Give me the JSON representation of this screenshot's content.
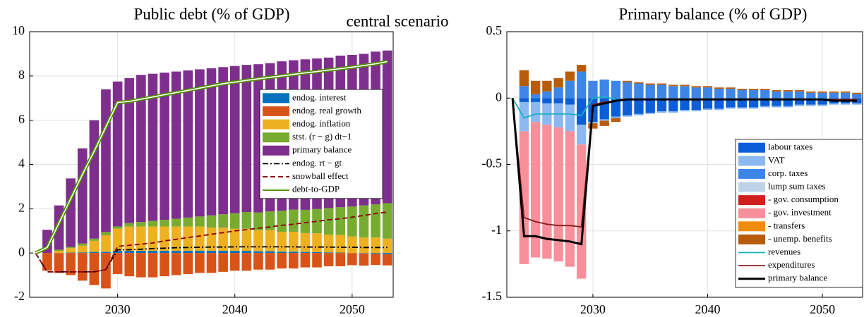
{
  "title": "central scenario",
  "chart_data": [
    {
      "type": "bar",
      "stacked": true,
      "title": "Public debt (% of GDP)",
      "x": [
        2024,
        2025,
        2026,
        2027,
        2028,
        2029,
        2030,
        2031,
        2032,
        2033,
        2034,
        2035,
        2036,
        2037,
        2038,
        2039,
        2040,
        2041,
        2042,
        2043,
        2044,
        2045,
        2046,
        2047,
        2048,
        2049,
        2050,
        2051,
        2052,
        2053
      ],
      "xlim": [
        2022.5,
        2053.5
      ],
      "xticks": [
        2030,
        2040,
        2050
      ],
      "ylim": [
        -2,
        10
      ],
      "yticks": [
        -2,
        0,
        2,
        4,
        6,
        8,
        10
      ],
      "grid": true,
      "legend": "upper right",
      "series": [
        {
          "name": "endog. interest",
          "type": "bar",
          "color": "#0072bd",
          "values": [
            0,
            0,
            0.02,
            0.03,
            0.05,
            0.05,
            0.1,
            0.1,
            0.1,
            0.1,
            0.1,
            0.1,
            0.1,
            0.1,
            0.1,
            0.1,
            0.1,
            0.1,
            0.08,
            0.08,
            0.06,
            0.06,
            0.05,
            0.04,
            0.03,
            0.02,
            0,
            -0.02,
            -0.04,
            -0.06
          ]
        },
        {
          "name": "endog. real growth",
          "type": "bar",
          "color": "#d95319",
          "values": [
            -0.8,
            -0.9,
            -1.0,
            -1.25,
            -1.45,
            -1.6,
            -0.95,
            -1.05,
            -1.1,
            -1.1,
            -1.05,
            -1.0,
            -0.95,
            -0.9,
            -0.9,
            -0.85,
            -0.8,
            -0.8,
            -0.75,
            -0.75,
            -0.7,
            -0.7,
            -0.65,
            -0.65,
            -0.6,
            -0.6,
            -0.55,
            -0.55,
            -0.5,
            -0.5
          ]
        },
        {
          "name": "endog. inflation",
          "type": "bar",
          "color": "#edb120",
          "values": [
            0,
            0.1,
            0.2,
            0.3,
            0.5,
            0.75,
            1.0,
            1.1,
            1.1,
            1.1,
            1.1,
            1.1,
            1.1,
            1.1,
            1.05,
            1.05,
            1.0,
            1.0,
            0.95,
            0.95,
            0.9,
            0.9,
            0.85,
            0.85,
            0.8,
            0.8,
            0.75,
            0.7,
            0.7,
            0.65
          ]
        },
        {
          "name": "stst. (r − g) dt−1",
          "type": "bar",
          "color": "#77ac30",
          "values": [
            0,
            0.05,
            0.05,
            0.1,
            0.1,
            0.15,
            0.1,
            0.15,
            0.2,
            0.25,
            0.3,
            0.35,
            0.4,
            0.45,
            0.55,
            0.6,
            0.7,
            0.75,
            0.8,
            0.85,
            0.95,
            1.0,
            1.05,
            1.1,
            1.2,
            1.25,
            1.35,
            1.45,
            1.5,
            1.6
          ]
        },
        {
          "name": "primary balance",
          "type": "bar",
          "color": "#7e2f8e",
          "values": [
            1.05,
            2.0,
            3.1,
            4.3,
            5.35,
            6.45,
            6.55,
            6.55,
            6.65,
            6.65,
            6.65,
            6.65,
            6.65,
            6.65,
            6.65,
            6.65,
            6.65,
            6.65,
            6.7,
            6.7,
            6.75,
            6.75,
            6.8,
            6.8,
            6.8,
            6.85,
            6.85,
            6.85,
            6.9,
            6.9
          ]
        },
        {
          "name": "endog. rt − gt",
          "type": "line",
          "color": "#000000",
          "style": "dashdot",
          "x": [
            2023,
            2024,
            2025,
            2026,
            2027,
            2028,
            2029,
            2030,
            2031,
            2032,
            2033,
            2034,
            2035,
            2036,
            2037,
            2038,
            2039,
            2040,
            2041,
            2042,
            2043,
            2044,
            2045,
            2046,
            2047,
            2048,
            2049,
            2050,
            2051,
            2052,
            2053
          ],
          "values": [
            0,
            -0.85,
            -0.85,
            -0.85,
            -0.85,
            -0.85,
            -0.75,
            0.15,
            0.15,
            0.17,
            0.2,
            0.22,
            0.24,
            0.25,
            0.26,
            0.27,
            0.27,
            0.28,
            0.28,
            0.28,
            0.28,
            0.28,
            0.28,
            0.27,
            0.27,
            0.27,
            0.26,
            0.26,
            0.25,
            0.25,
            0.25
          ]
        },
        {
          "name": "snowball effect",
          "type": "line",
          "color": "#8b0000",
          "style": "dashed",
          "x": [
            2023,
            2024,
            2025,
            2026,
            2027,
            2028,
            2029,
            2030,
            2031,
            2032,
            2033,
            2034,
            2035,
            2036,
            2037,
            2038,
            2039,
            2040,
            2041,
            2042,
            2043,
            2044,
            2045,
            2046,
            2047,
            2048,
            2049,
            2050,
            2051,
            2052,
            2053
          ],
          "values": [
            0,
            -0.85,
            -0.85,
            -0.85,
            -0.85,
            -0.85,
            -0.75,
            0.3,
            0.35,
            0.4,
            0.45,
            0.55,
            0.62,
            0.7,
            0.77,
            0.85,
            0.92,
            1.0,
            1.06,
            1.12,
            1.18,
            1.25,
            1.3,
            1.37,
            1.43,
            1.5,
            1.55,
            1.62,
            1.7,
            1.78,
            1.85
          ]
        },
        {
          "name": "debt-to-GDP",
          "type": "line",
          "color": "#4f8f00",
          "style": "double",
          "x": [
            2023,
            2024,
            2025,
            2026,
            2027,
            2028,
            2029,
            2030,
            2031,
            2032,
            2033,
            2034,
            2035,
            2036,
            2037,
            2038,
            2039,
            2040,
            2041,
            2042,
            2043,
            2044,
            2045,
            2046,
            2047,
            2048,
            2049,
            2050,
            2051,
            2052,
            2053
          ],
          "values": [
            0,
            0.25,
            1.35,
            2.45,
            3.55,
            4.6,
            5.7,
            6.8,
            6.85,
            6.95,
            7.05,
            7.15,
            7.25,
            7.35,
            7.45,
            7.55,
            7.65,
            7.72,
            7.8,
            7.87,
            7.94,
            8.0,
            8.07,
            8.14,
            8.2,
            8.27,
            8.33,
            8.4,
            8.47,
            8.55,
            8.65
          ]
        }
      ]
    },
    {
      "type": "bar",
      "stacked": true,
      "title": "Primary balance (% of GDP)",
      "x": [
        2024,
        2025,
        2026,
        2027,
        2028,
        2029,
        2030,
        2031,
        2032,
        2033,
        2034,
        2035,
        2036,
        2037,
        2038,
        2039,
        2040,
        2041,
        2042,
        2043,
        2044,
        2045,
        2046,
        2047,
        2048,
        2049,
        2050,
        2051,
        2052,
        2053
      ],
      "xlim": [
        2022.5,
        2053.5
      ],
      "xticks": [
        2030,
        2040,
        2050
      ],
      "ylim": [
        -1.5,
        0.5
      ],
      "yticks": [
        -1.5,
        -1,
        -0.5,
        0,
        0.5
      ],
      "grid": true,
      "legend": "lower right",
      "series": [
        {
          "name": "labour taxes",
          "type": "bar",
          "color": "#0b5ed7",
          "values": [
            -0.03,
            -0.03,
            -0.04,
            -0.04,
            -0.05,
            -0.2,
            -0.18,
            -0.16,
            -0.14,
            -0.13,
            -0.12,
            -0.11,
            -0.1,
            -0.1,
            -0.09,
            -0.09,
            -0.08,
            -0.08,
            -0.07,
            -0.07,
            -0.07,
            -0.06,
            -0.06,
            -0.06,
            -0.05,
            -0.05,
            -0.05,
            -0.04,
            -0.04,
            -0.04
          ]
        },
        {
          "name": "VAT",
          "type": "bar",
          "color": "#8cb8f2",
          "values": [
            -0.22,
            -0.15,
            -0.16,
            -0.18,
            -0.2,
            -0.15,
            -0.01,
            -0.01,
            -0.01,
            -0.01,
            -0.01,
            -0.01,
            -0.01,
            -0.01,
            -0.01,
            -0.01,
            -0.01,
            -0.01,
            -0.01,
            -0.01,
            -0.01,
            -0.01,
            -0.01,
            -0.01,
            -0.01,
            -0.01,
            -0.01,
            -0.01,
            -0.01,
            -0.01
          ]
        },
        {
          "name": "corp. taxes",
          "type": "bar",
          "color": "#3d86e8",
          "values": [
            0.09,
            0.03,
            0.05,
            0.08,
            0.13,
            0.2,
            0.13,
            0.14,
            0.13,
            0.12,
            0.11,
            0.1,
            0.1,
            0.09,
            0.09,
            0.08,
            0.08,
            0.07,
            0.07,
            0.06,
            0.06,
            0.06,
            0.05,
            0.05,
            0.05,
            0.04,
            0.04,
            0.04,
            0.04,
            0.03
          ]
        },
        {
          "name": "lump sum taxes",
          "type": "bar",
          "color": "#bfd3e6",
          "values": [
            0,
            0,
            0,
            0,
            0,
            0,
            0,
            0,
            0,
            0,
            0,
            0,
            0,
            0,
            0,
            0,
            0,
            0,
            0,
            0,
            0,
            0,
            0,
            0,
            0,
            0,
            0,
            0,
            0,
            0
          ]
        },
        {
          "name": "- gov. consumption",
          "type": "bar",
          "color": "#d0201c",
          "values": [
            0,
            0,
            0,
            0,
            0,
            0,
            0,
            0,
            0,
            0,
            0,
            0,
            0,
            0,
            0,
            0,
            0,
            0,
            0,
            0,
            0,
            0,
            0,
            0,
            0,
            0,
            0,
            0,
            0,
            0
          ]
        },
        {
          "name": "- gov. investment",
          "type": "bar",
          "color": "#f7909a",
          "values": [
            -1.0,
            -1.02,
            -1.01,
            -1.01,
            -1.02,
            -1.01,
            0,
            0,
            0,
            0,
            0,
            0,
            0,
            0,
            0,
            0,
            0,
            0,
            0,
            0,
            0,
            0,
            0,
            0,
            0,
            0,
            0,
            0,
            0,
            0
          ]
        },
        {
          "name": "- transfers",
          "type": "bar",
          "color": "#f08c0c",
          "values": [
            0,
            0,
            0,
            0,
            0,
            0,
            0,
            0,
            0,
            0,
            0,
            0,
            0,
            0,
            0,
            0,
            0,
            0,
            0,
            0,
            0,
            0,
            0,
            0,
            0,
            0,
            0,
            0,
            0,
            0
          ]
        },
        {
          "name": "- unemp. benefits",
          "type": "bar",
          "color": "#b85c0c",
          "values": [
            0.12,
            0.1,
            0.08,
            0.07,
            0.07,
            0.05,
            -0.04,
            -0.04,
            -0.03,
            0.01,
            0.01,
            0.01,
            0.01,
            0.01,
            0.01,
            0.01,
            0.01,
            0.01,
            0.01,
            0.01,
            0.01,
            0.01,
            0.01,
            0.01,
            0.01,
            0.01,
            0.01,
            0.01,
            0.01,
            0.01
          ]
        },
        {
          "name": "revenues",
          "type": "line",
          "color": "#17b0bf",
          "style": "solid",
          "x": [
            2023,
            2024,
            2025,
            2026,
            2027,
            2028,
            2029,
            2030,
            2031,
            2032,
            2033,
            2034,
            2035,
            2036,
            2037,
            2038,
            2039,
            2040,
            2041,
            2042,
            2043,
            2044,
            2045,
            2046,
            2047,
            2048,
            2049,
            2050,
            2051,
            2052,
            2053
          ],
          "values": [
            0,
            -0.15,
            -0.12,
            -0.12,
            -0.12,
            -0.12,
            -0.13,
            0.0,
            0.01,
            -0.01,
            -0.01,
            -0.01,
            -0.01,
            -0.01,
            -0.01,
            -0.01,
            -0.01,
            -0.01,
            -0.01,
            -0.01,
            -0.01,
            -0.01,
            -0.01,
            -0.01,
            -0.01,
            -0.01,
            -0.01,
            -0.01,
            -0.01,
            -0.01,
            -0.01
          ]
        },
        {
          "name": "expenditures",
          "type": "line",
          "color": "#8b1a1a",
          "style": "solid",
          "x": [
            2023,
            2024,
            2025,
            2026,
            2027,
            2028,
            2029,
            2030,
            2031,
            2032,
            2033,
            2034,
            2035,
            2036,
            2037,
            2038,
            2039,
            2040,
            2041,
            2042,
            2043,
            2044,
            2045,
            2046,
            2047,
            2048,
            2049,
            2050,
            2051,
            2052,
            2053
          ],
          "values": [
            0,
            -0.9,
            -0.93,
            -0.95,
            -0.96,
            -0.96,
            -0.97,
            -0.05,
            -0.03,
            -0.02,
            -0.01,
            -0.01,
            -0.01,
            -0.01,
            -0.01,
            -0.01,
            -0.01,
            -0.01,
            -0.01,
            -0.01,
            -0.01,
            -0.01,
            -0.01,
            -0.01,
            -0.01,
            -0.01,
            -0.01,
            -0.01,
            -0.01,
            -0.01,
            -0.01
          ]
        },
        {
          "name": "primary balance",
          "type": "line",
          "color": "#000000",
          "style": "thick",
          "x": [
            2023,
            2024,
            2025,
            2026,
            2027,
            2028,
            2029,
            2030,
            2031,
            2032,
            2033,
            2034,
            2035,
            2036,
            2037,
            2038,
            2039,
            2040,
            2041,
            2042,
            2043,
            2044,
            2045,
            2046,
            2047,
            2048,
            2049,
            2050,
            2051,
            2052,
            2053
          ],
          "values": [
            0,
            -1.04,
            -1.04,
            -1.06,
            -1.07,
            -1.08,
            -1.1,
            -0.06,
            -0.04,
            -0.02,
            -0.01,
            -0.01,
            -0.01,
            -0.01,
            -0.01,
            -0.01,
            -0.01,
            -0.01,
            -0.01,
            -0.01,
            -0.01,
            -0.01,
            -0.01,
            -0.01,
            -0.01,
            -0.01,
            -0.01,
            -0.01,
            -0.02,
            -0.02,
            -0.02
          ]
        }
      ]
    }
  ]
}
